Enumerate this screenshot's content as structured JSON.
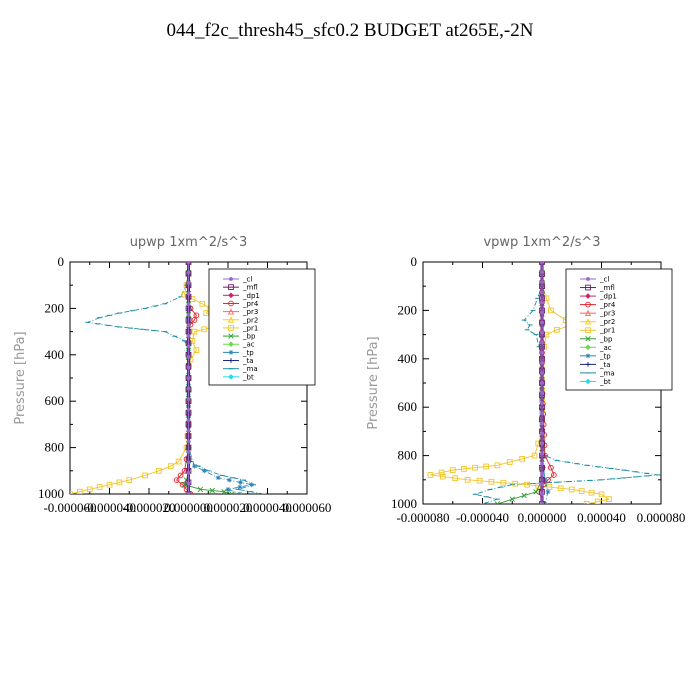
{
  "figure": {
    "title": "044_f2c_thresh45_sfc0.2  BUDGET at265E,-2N"
  },
  "legend_entries": [
    {
      "name": "_cl",
      "color": "#9966cc",
      "marker": "cross"
    },
    {
      "name": "_mfl",
      "color": "#6a1b6a",
      "marker": "square"
    },
    {
      "name": "_dp1",
      "color": "#cc2266",
      "marker": "diamond"
    },
    {
      "name": "_pr4",
      "color": "#e0222c",
      "marker": "circle"
    },
    {
      "name": "_pr3",
      "color": "#ff6666",
      "marker": "triangle"
    },
    {
      "name": "_pr2",
      "color": "#ffcc00",
      "marker": "triangle"
    },
    {
      "name": "_pr1",
      "color": "#f2c42a",
      "marker": "square"
    },
    {
      "name": "_bp",
      "color": "#2e9e2e",
      "marker": "x"
    },
    {
      "name": "_ac",
      "color": "#66dd44",
      "marker": "diamond"
    },
    {
      "name": "_tp",
      "color": "#2a85b5",
      "marker": "star"
    },
    {
      "name": "_ta",
      "color": "#1a237e",
      "marker": "plus"
    },
    {
      "name": "_ma",
      "color": "#1b8fa5",
      "marker": "dash"
    },
    {
      "name": "_bt",
      "color": "#22ddee",
      "marker": "diamond"
    }
  ],
  "chart_data": [
    {
      "type": "line",
      "title": "upwp   1xm^2/s^3",
      "xlabel": "",
      "ylabel": "Pressure  [hPa]",
      "xlim": [
        -6e-05,
        6e-05
      ],
      "ylim": [
        0,
        1000
      ],
      "y_inverted": true,
      "x_ticks": [
        -6e-05,
        -4e-05,
        -2e-05,
        0,
        2e-05,
        4e-05,
        6e-05
      ],
      "x_tick_labels": [
        "-0.000060",
        "-0.000040",
        "-0.000020",
        "0.000000",
        "0.000020",
        "0.000040",
        "0.000060"
      ],
      "y_ticks": [
        0,
        200,
        400,
        600,
        800,
        1000
      ],
      "y_tick_labels": [
        "0",
        "200",
        "400",
        "600",
        "800",
        "1000"
      ],
      "legend_placement": "upper-right",
      "series": [
        {
          "name": "_ma",
          "color": "#1b8fa5",
          "y": [
            0,
            50,
            100,
            150,
            180,
            200,
            220,
            240,
            260,
            280,
            300,
            340,
            380,
            420,
            500,
            600,
            700,
            800,
            860,
            880,
            900,
            920,
            940,
            960,
            980,
            1000
          ],
          "x": [
            0,
            0,
            -1e-06,
            -4e-06,
            -1.2e-05,
            -2.2e-05,
            -3.5e-05,
            -4.5e-05,
            -5.1e-05,
            -3.5e-05,
            -1.2e-05,
            -2e-06,
            0,
            0,
            0,
            0,
            0,
            0,
            1e-06,
            5e-06,
            1e-05,
            1.7e-05,
            2.8e-05,
            3.3e-05,
            2.5e-05,
            3.8e-05
          ]
        },
        {
          "name": "_pr1",
          "color": "#f2c42a",
          "y": [
            0,
            50,
            100,
            140,
            160,
            180,
            200,
            220,
            240,
            260,
            280,
            300,
            340,
            380,
            420,
            500,
            600,
            700,
            800,
            860,
            880,
            900,
            920,
            940,
            960,
            980,
            1000
          ],
          "x": [
            0,
            0,
            -1e-06,
            -2e-06,
            2e-06,
            7e-06,
            1.1e-05,
            9e-06,
            1.6e-05,
            2.1e-05,
            1.3e-05,
            3e-06,
            2e-06,
            4e-06,
            1e-06,
            0,
            0,
            0,
            -1e-06,
            -5e-06,
            -9e-06,
            -1.5e-05,
            -2.2e-05,
            -3e-05,
            -4e-05,
            -5e-05,
            -6e-05
          ]
        },
        {
          "name": "_pr4",
          "color": "#e0222c",
          "y": [
            0,
            150,
            200,
            230,
            250,
            270,
            300,
            500,
            800,
            900,
            920,
            940,
            960,
            980,
            1000
          ],
          "x": [
            0,
            0,
            1e-06,
            4e-06,
            3e-06,
            1e-06,
            0,
            0,
            0,
            -2e-06,
            -4e-06,
            -6e-06,
            -3e-06,
            -1e-06,
            1e-06
          ]
        },
        {
          "name": "_bp",
          "color": "#2e9e2e",
          "y": [
            0,
            500,
            900,
            940,
            960,
            980,
            990,
            1000
          ],
          "x": [
            0,
            0,
            0,
            -1e-06,
            -2e-06,
            6e-06,
            1.8e-05,
            2.2e-05
          ]
        },
        {
          "name": "_tp",
          "color": "#2a85b5",
          "y": [
            0,
            200,
            300,
            800,
            880,
            900,
            930,
            960,
            980,
            1000
          ],
          "x": [
            0,
            0,
            0,
            0,
            3e-06,
            8e-06,
            1.5e-05,
            3.2e-05,
            2e-05,
            2.6e-05
          ]
        },
        {
          "name": "_mfl",
          "color": "#6a1b6a",
          "y": [
            0,
            200,
            400,
            600,
            800,
            1000
          ],
          "x": [
            0,
            0,
            0,
            0,
            0,
            0
          ]
        },
        {
          "name": "_cl",
          "color": "#9966cc",
          "y": [
            0,
            500,
            1000
          ],
          "x": [
            0,
            0,
            0
          ]
        }
      ]
    },
    {
      "type": "line",
      "title": "vpwp   1xm^2/s^3",
      "xlabel": "",
      "ylabel": "Pressure  [hPa]",
      "xlim": [
        -8e-05,
        8e-05
      ],
      "ylim": [
        0,
        1000
      ],
      "y_inverted": true,
      "x_ticks": [
        -8e-05,
        -4e-05,
        0,
        4e-05,
        8e-05
      ],
      "x_tick_labels": [
        "-0.000080",
        "-0.000040",
        "0.000000",
        "0.000040",
        "0.000080"
      ],
      "y_ticks": [
        0,
        200,
        400,
        600,
        800,
        1000
      ],
      "y_tick_labels": [
        "0",
        "200",
        "400",
        "600",
        "800",
        "1000"
      ],
      "legend_placement": "upper-right",
      "series": [
        {
          "name": "_ma",
          "color": "#1b8fa5",
          "y": [
            0,
            100,
            150,
            200,
            240,
            260,
            280,
            300,
            400,
            700,
            800,
            820,
            840,
            860,
            880,
            900,
            920,
            940,
            960,
            980,
            1000
          ],
          "x": [
            0,
            0,
            -3e-06,
            -6e-06,
            -1.2e-05,
            -8e-06,
            -1e-05,
            -4e-06,
            0,
            0,
            2e-06,
            1e-05,
            3e-05,
            5.5e-05,
            7.8e-05,
            4e-05,
            -2e-05,
            -3.5e-05,
            -4.5e-05,
            -3e-05,
            -4e-05
          ]
        },
        {
          "name": "_pr1",
          "color": "#f2c42a",
          "y": [
            0,
            100,
            150,
            200,
            240,
            260,
            280,
            300,
            400,
            700,
            800,
            840,
            860,
            880,
            900,
            920,
            940,
            960,
            980,
            1000
          ],
          "x": [
            0,
            0,
            3e-06,
            6e-06,
            1.6e-05,
            2e-05,
            1e-05,
            3e-06,
            0,
            0,
            -5e-06,
            -3e-05,
            -6e-05,
            -7.5e-05,
            -5e-05,
            -1e-05,
            2e-05,
            4e-05,
            4.5e-05,
            3e-05
          ]
        },
        {
          "name": "_pr4",
          "color": "#e0222c",
          "y": [
            0,
            500,
            800,
            850,
            880,
            900,
            920,
            950,
            1000
          ],
          "x": [
            0,
            0,
            2e-06,
            6e-06,
            8e-06,
            4e-06,
            1e-06,
            -2e-06,
            1e-06
          ]
        },
        {
          "name": "_bp",
          "color": "#2e9e2e",
          "y": [
            0,
            900,
            950,
            980,
            1000
          ],
          "x": [
            0,
            0,
            -4e-06,
            -2e-05,
            -3e-05
          ]
        },
        {
          "name": "_tp",
          "color": "#2a85b5",
          "y": [
            0,
            800,
            900,
            950,
            1000
          ],
          "x": [
            0,
            0,
            2e-06,
            4e-06,
            2e-06
          ]
        },
        {
          "name": "_mfl",
          "color": "#6a1b6a",
          "y": [
            0,
            200,
            400,
            600,
            800,
            1000
          ],
          "x": [
            0,
            0,
            0,
            0,
            0,
            0
          ]
        },
        {
          "name": "_cl",
          "color": "#9966cc",
          "y": [
            0,
            500,
            1000
          ],
          "x": [
            0,
            0,
            0
          ]
        }
      ]
    }
  ]
}
